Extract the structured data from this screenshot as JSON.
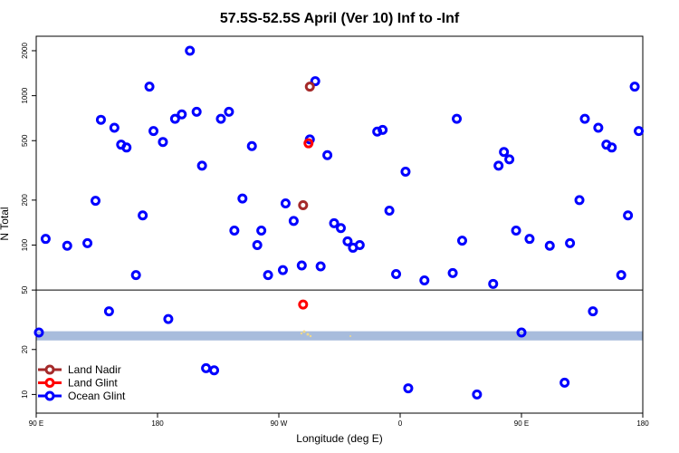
{
  "chart_data": {
    "type": "scatter",
    "title": "57.5S-52.5S April (Ver 10)   Inf to -Inf",
    "xlabel": "Longitude (deg E)",
    "ylabel": "N Total",
    "x_ticks": [
      {
        "value": 0,
        "label": "90 E"
      },
      {
        "value": 90,
        "label": "180"
      },
      {
        "value": 180,
        "label": "90 W"
      },
      {
        "value": 270,
        "label": "0"
      },
      {
        "value": 360,
        "label": "90 E"
      },
      {
        "value": 450,
        "label": "180"
      }
    ],
    "xlim": [
      0,
      450
    ],
    "y_scale": "log",
    "y_ticks": [
      10,
      20,
      50,
      100,
      200,
      500,
      1000,
      2000
    ],
    "ylim": [
      7.5,
      2500
    ],
    "reference_line": 50,
    "band": {
      "low": 23,
      "high": 26.5,
      "color": "#a8bcdc"
    },
    "legend": {
      "position": "bottom-left",
      "entries": [
        {
          "label": "Land Nadir",
          "color": "#a52a2a"
        },
        {
          "label": "Land Glint",
          "color": "#ff0000"
        },
        {
          "label": "Ocean Glint",
          "color": "#0000ff"
        }
      ]
    },
    "series": [
      {
        "name": "Ocean Glint",
        "color": "#0000ff",
        "points": [
          [
            2,
            26
          ],
          [
            7,
            110
          ],
          [
            23,
            99
          ],
          [
            38,
            103
          ],
          [
            44,
            198
          ],
          [
            48,
            690
          ],
          [
            54,
            36
          ],
          [
            58,
            610
          ],
          [
            63,
            470
          ],
          [
            67,
            450
          ],
          [
            74,
            63
          ],
          [
            79,
            158
          ],
          [
            84,
            1150
          ],
          [
            87,
            580
          ],
          [
            94,
            490
          ],
          [
            98,
            32
          ],
          [
            103,
            700
          ],
          [
            108,
            750
          ],
          [
            114,
            2000
          ],
          [
            119,
            780
          ],
          [
            123,
            340
          ],
          [
            126,
            15
          ],
          [
            132,
            14.5
          ],
          [
            137,
            700
          ],
          [
            143,
            780
          ],
          [
            147,
            125
          ],
          [
            153,
            205
          ],
          [
            160,
            460
          ],
          [
            164,
            100
          ],
          [
            167,
            125
          ],
          [
            172,
            63
          ],
          [
            183,
            68
          ],
          [
            185,
            190
          ],
          [
            191,
            145
          ],
          [
            197,
            73
          ],
          [
            203,
            510
          ],
          [
            207,
            1250
          ],
          [
            211,
            72
          ],
          [
            216,
            400
          ],
          [
            221,
            140
          ],
          [
            226,
            130
          ],
          [
            231,
            106
          ],
          [
            235,
            96
          ],
          [
            240,
            100
          ],
          [
            253,
            575
          ],
          [
            257,
            590
          ],
          [
            262,
            170
          ],
          [
            267,
            64
          ],
          [
            274,
            310
          ],
          [
            276,
            11
          ],
          [
            288,
            58
          ],
          [
            309,
            65
          ],
          [
            312,
            700
          ],
          [
            316,
            107
          ],
          [
            327,
            10
          ],
          [
            339,
            55
          ],
          [
            343,
            340
          ],
          [
            347,
            420
          ],
          [
            351,
            375
          ],
          [
            356,
            125
          ],
          [
            360,
            26
          ],
          [
            366,
            110
          ],
          [
            381,
            99
          ],
          [
            392,
            12
          ],
          [
            396,
            103
          ],
          [
            403,
            200
          ],
          [
            407,
            700
          ],
          [
            413,
            36
          ],
          [
            417,
            610
          ],
          [
            423,
            470
          ],
          [
            427,
            450
          ],
          [
            434,
            63
          ],
          [
            439,
            158
          ],
          [
            444,
            1150
          ],
          [
            447,
            580
          ]
        ]
      },
      {
        "name": "Land Nadir",
        "color": "#a52a2a",
        "points": [
          [
            203,
            1150
          ],
          [
            198,
            185
          ]
        ]
      },
      {
        "name": "Land Glint",
        "color": "#ff0000",
        "points": [
          [
            202,
            480
          ],
          [
            198,
            40
          ]
        ]
      }
    ]
  }
}
